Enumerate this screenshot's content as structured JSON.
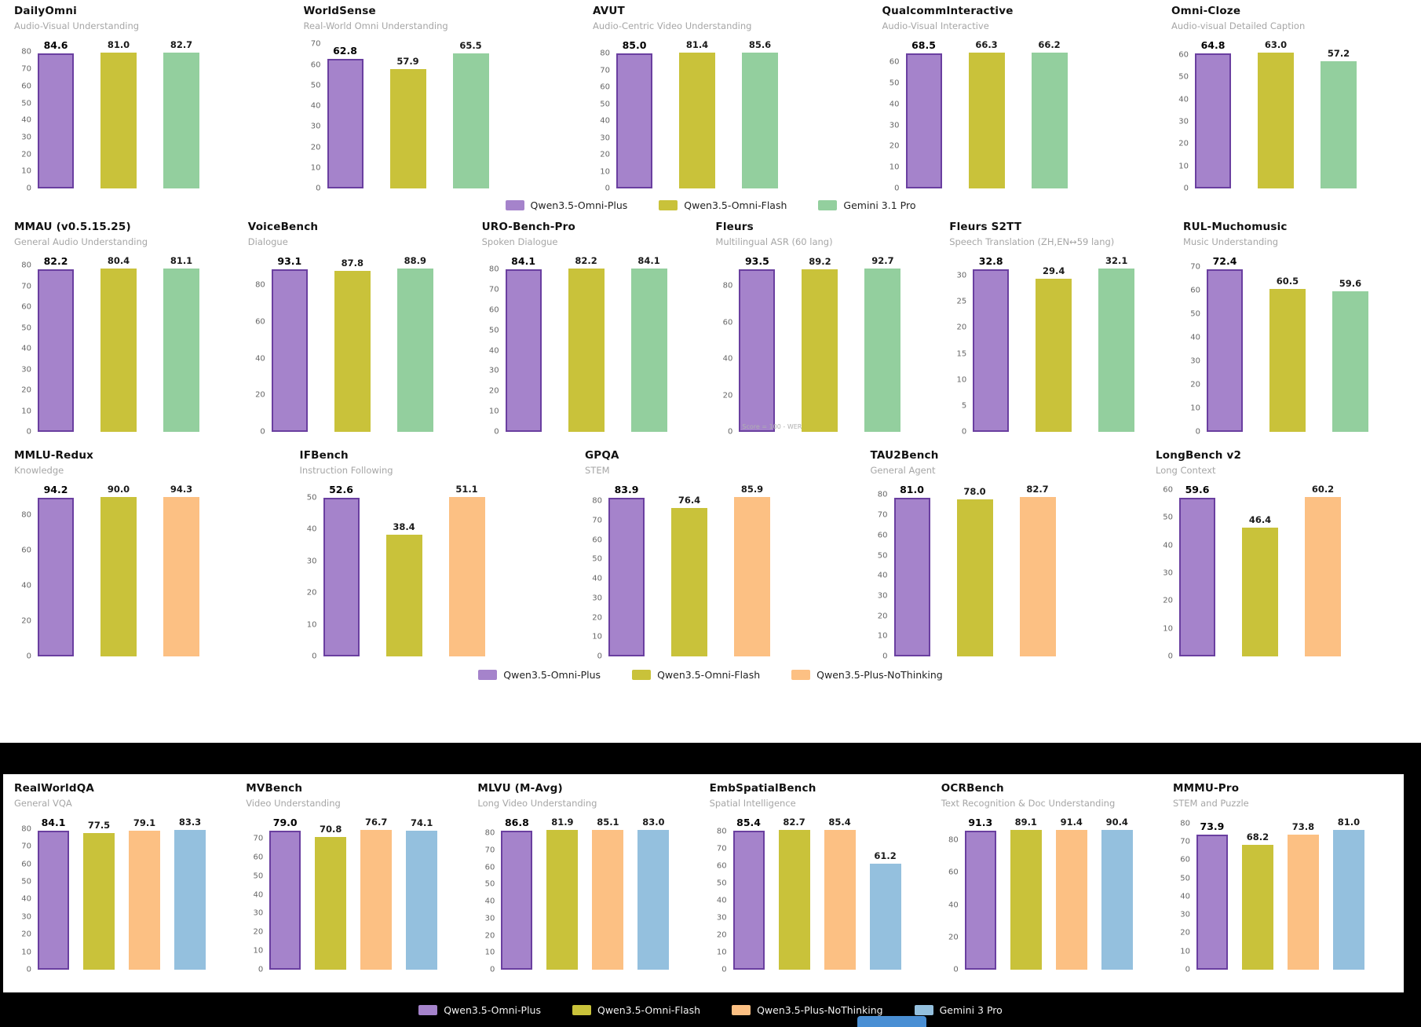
{
  "colors": {
    "plus": "#a583cb",
    "plus_border": "#6a3fa0",
    "flash": "#c9c23a",
    "gemini31": "#93cf9e",
    "nothinking": "#fcc083",
    "gemini3": "#94c0de",
    "bottom_element": "#4a8fd4"
  },
  "chart_data": {
    "type": "bar",
    "ylabel": "Score",
    "grid": false,
    "rows": [
      {
        "series": [
          "Qwen3.5-Omni-Plus",
          "Qwen3.5-Omni-Flash",
          "Gemini 3.1 Pro"
        ],
        "series_colors": [
          "plus",
          "flash",
          "gemini31"
        ],
        "charts": [
          {
            "title": "DailyOmni",
            "subtitle": "Audio-Visual Understanding",
            "values": [
              84.6,
              81.0,
              82.7
            ],
            "ytop": 80,
            "ystep": 10
          },
          {
            "title": "WorldSense",
            "subtitle": "Real-World Omni Understanding",
            "values": [
              62.8,
              57.9,
              65.5
            ],
            "ytop": 70,
            "ystep": 10
          },
          {
            "title": "AVUT",
            "subtitle": "Audio-Centric Video Understanding",
            "values": [
              85.0,
              81.4,
              85.6
            ],
            "ytop": 80,
            "ystep": 10
          },
          {
            "title": "QualcommInteractive",
            "subtitle": "Audio-Visual Interactive",
            "values": [
              68.5,
              66.3,
              66.2
            ],
            "ytop": 60,
            "ystep": 10
          },
          {
            "title": "Omni-Cloze",
            "subtitle": "Audio-visual Detailed Caption",
            "values": [
              64.8,
              63.0,
              57.2
            ],
            "ytop": 60,
            "ystep": 10
          }
        ]
      },
      {
        "series": [
          "Qwen3.5-Omni-Plus",
          "Qwen3.5-Omni-Flash",
          "Gemini 3.1 Pro"
        ],
        "series_colors": [
          "plus",
          "flash",
          "gemini31"
        ],
        "charts": [
          {
            "title": "MMAU (v0.5.15.25)",
            "subtitle": "General Audio Understanding",
            "values": [
              82.2,
              80.4,
              81.1
            ],
            "ytop": 80,
            "ystep": 10
          },
          {
            "title": "VoiceBench",
            "subtitle": "Dialogue",
            "values": [
              93.1,
              87.8,
              88.9
            ],
            "ytop": 80,
            "ystep": 20
          },
          {
            "title": "URO-Bench-Pro",
            "subtitle": "Spoken Dialogue",
            "values": [
              84.1,
              82.2,
              84.1
            ],
            "ytop": 80,
            "ystep": 10
          },
          {
            "title": "Fleurs",
            "subtitle": "Multilingual ASR (60 lang)",
            "values": [
              93.5,
              89.2,
              92.7
            ],
            "ytop": 80,
            "ystep": 20,
            "annotation": "Score = 100 - WER"
          },
          {
            "title": "Fleurs S2TT",
            "subtitle": "Speech Translation (ZH,EN↔59 lang)",
            "values": [
              32.8,
              29.4,
              32.1
            ],
            "ytop": 30,
            "ystep": 5
          },
          {
            "title": "RUL-Muchomusic",
            "subtitle": "Music Understanding",
            "values": [
              72.4,
              60.5,
              59.6
            ],
            "ytop": 70,
            "ystep": 10
          }
        ]
      },
      {
        "series": [
          "Qwen3.5-Omni-Plus",
          "Qwen3.5-Omni-Flash",
          "Qwen3.5-Plus-NoThinking"
        ],
        "series_colors": [
          "plus",
          "flash",
          "nothinking"
        ],
        "charts": [
          {
            "title": "MMLU-Redux",
            "subtitle": "Knowledge",
            "values": [
              94.2,
              90.0,
              94.3
            ],
            "ytop": 80,
            "ystep": 20
          },
          {
            "title": "IFBench",
            "subtitle": "Instruction Following",
            "values": [
              52.6,
              38.4,
              51.1
            ],
            "ytop": 50,
            "ystep": 10
          },
          {
            "title": "GPQA",
            "subtitle": "STEM",
            "values": [
              83.9,
              76.4,
              85.9
            ],
            "ytop": 80,
            "ystep": 10
          },
          {
            "title": "TAU2Bench",
            "subtitle": "General Agent",
            "values": [
              81.0,
              78.0,
              82.7
            ],
            "ytop": 80,
            "ystep": 10
          },
          {
            "title": "LongBench v2",
            "subtitle": "Long Context",
            "values": [
              59.6,
              46.4,
              60.2
            ],
            "ytop": 60,
            "ystep": 10
          }
        ]
      },
      {
        "series": [
          "Qwen3.5-Omni-Plus",
          "Qwen3.5-Omni-Flash",
          "Qwen3.5-Plus-NoThinking",
          "Gemini 3 Pro"
        ],
        "series_colors": [
          "plus",
          "flash",
          "nothinking",
          "gemini3"
        ],
        "charts": [
          {
            "title": "RealWorldQA",
            "subtitle": "General VQA",
            "values": [
              84.1,
              77.5,
              79.1,
              83.3
            ],
            "ytop": 80,
            "ystep": 10
          },
          {
            "title": "MVBench",
            "subtitle": "Video Understanding",
            "values": [
              79.0,
              70.8,
              76.7,
              74.1
            ],
            "ytop": 70,
            "ystep": 10
          },
          {
            "title": "MLVU (M-Avg)",
            "subtitle": "Long Video Understanding",
            "values": [
              86.8,
              81.9,
              85.1,
              83.0
            ],
            "ytop": 80,
            "ystep": 10
          },
          {
            "title": "EmbSpatialBench",
            "subtitle": "Spatial Intelligence",
            "values": [
              85.4,
              82.7,
              85.4,
              61.2
            ],
            "ytop": 80,
            "ystep": 10
          },
          {
            "title": "OCRBench",
            "subtitle": "Text Recognition & Doc Understanding",
            "values": [
              91.3,
              89.1,
              91.4,
              90.4
            ],
            "ytop": 80,
            "ystep": 20
          },
          {
            "title": "MMMU-Pro",
            "subtitle": "STEM and Puzzle",
            "values": [
              73.9,
              68.2,
              73.8,
              81.0
            ],
            "ytop": 80,
            "ystep": 10
          }
        ]
      }
    ]
  },
  "legends": [
    {
      "items": [
        {
          "label": "Qwen3.5-Omni-Plus",
          "color": "plus"
        },
        {
          "label": "Qwen3.5-Omni-Flash",
          "color": "flash"
        },
        {
          "label": "Gemini 3.1 Pro",
          "color": "gemini31"
        }
      ]
    },
    {
      "items": [
        {
          "label": "Qwen3.5-Omni-Plus",
          "color": "plus"
        },
        {
          "label": "Qwen3.5-Omni-Flash",
          "color": "flash"
        },
        {
          "label": "Qwen3.5-Plus-NoThinking",
          "color": "nothinking"
        }
      ]
    },
    {
      "items": [
        {
          "label": "Qwen3.5-Omni-Plus",
          "color": "plus"
        },
        {
          "label": "Qwen3.5-Omni-Flash",
          "color": "flash"
        },
        {
          "label": "Qwen3.5-Plus-NoThinking",
          "color": "nothinking"
        },
        {
          "label": "Gemini 3 Pro",
          "color": "gemini3"
        }
      ]
    }
  ]
}
